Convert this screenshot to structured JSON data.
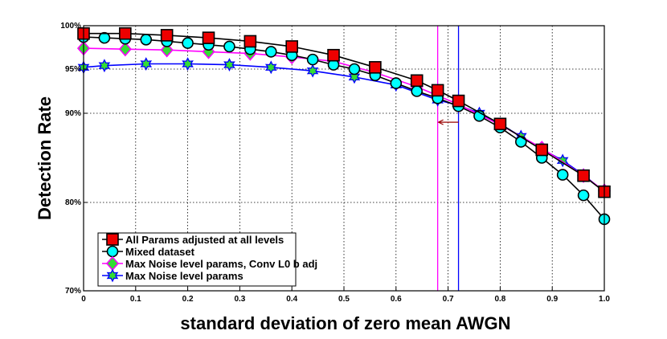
{
  "chart_data": {
    "type": "line",
    "title": "",
    "xlabel": "standard deviation of zero mean AWGN",
    "ylabel": "Detection Rate",
    "xlim": [
      0,
      1
    ],
    "ylim": [
      70,
      100
    ],
    "y_scale_note": "nonlinear axis: ticks at 70%, 80%, 90%, 95%, 100%",
    "x_ticks": [
      0,
      0.1,
      0.2,
      0.3,
      0.4,
      0.5,
      0.6,
      0.7,
      0.8,
      0.9,
      1.0
    ],
    "x_tick_labels": [
      "0",
      "0.1",
      "0.2",
      "0.3",
      "0.4",
      "0.5",
      "0.6",
      "0.7",
      "0.8",
      "0.9",
      "1.0"
    ],
    "y_ticks": [
      70,
      80,
      90,
      95,
      100
    ],
    "y_tick_labels": [
      "70%",
      "80%",
      "90%",
      "95%",
      "100%"
    ],
    "legend_position": "bottom-left",
    "series": [
      {
        "name": "All Params adjusted at all levels",
        "marker": "square",
        "marker_color": "#ee0000",
        "line_color": "#000000",
        "x": [
          0,
          0.08,
          0.16,
          0.24,
          0.32,
          0.4,
          0.48,
          0.56,
          0.64,
          0.68,
          0.72,
          0.8,
          0.88,
          0.96,
          1.0
        ],
        "y": [
          99.1,
          99.1,
          98.9,
          98.6,
          98.2,
          97.6,
          96.6,
          95.2,
          93.7,
          92.6,
          91.4,
          88.8,
          85.9,
          83.0,
          81.2
        ]
      },
      {
        "name": "Mixed dataset",
        "marker": "circle",
        "marker_color": "#00ffff",
        "line_color": "#000000",
        "x": [
          0,
          0.04,
          0.08,
          0.12,
          0.16,
          0.2,
          0.24,
          0.28,
          0.32,
          0.36,
          0.4,
          0.44,
          0.48,
          0.52,
          0.56,
          0.6,
          0.64,
          0.68,
          0.72,
          0.76,
          0.8,
          0.84,
          0.88,
          0.92,
          0.96,
          1.0
        ],
        "y": [
          98.7,
          98.6,
          98.5,
          98.4,
          98.2,
          98.0,
          97.8,
          97.6,
          97.3,
          97.0,
          96.6,
          96.1,
          95.5,
          95.0,
          94.3,
          93.4,
          92.5,
          91.7,
          90.8,
          89.7,
          88.4,
          86.8,
          85.0,
          83.1,
          80.8,
          78.1
        ]
      },
      {
        "name": "Max Noise level params, Conv L0 b adj",
        "marker": "diamond",
        "marker_color": "#33dd33",
        "marker_edge": "#ff00ff",
        "line_color": "#ff00ff",
        "x": [
          0,
          0.08,
          0.16,
          0.24,
          0.32,
          0.4,
          0.48,
          0.56,
          0.64,
          0.68,
          0.72,
          0.8,
          0.88,
          0.96,
          1.0
        ],
        "y": [
          97.4,
          97.3,
          97.2,
          97.0,
          96.8,
          96.4,
          95.9,
          94.6,
          93.0,
          92.0,
          91.0,
          88.7,
          86.1,
          83.0,
          81.3
        ]
      },
      {
        "name": "Max Noise level params",
        "marker": "hexagram",
        "marker_color": "#33dd33",
        "marker_edge": "#0000ff",
        "line_color": "#0000ff",
        "x": [
          0,
          0.04,
          0.12,
          0.2,
          0.28,
          0.36,
          0.44,
          0.52,
          0.6,
          0.68,
          0.72,
          0.76,
          0.8,
          0.84,
          0.88,
          0.92,
          0.96,
          1.0
        ],
        "y": [
          95.2,
          95.4,
          95.6,
          95.6,
          95.5,
          95.2,
          94.8,
          94.1,
          93.2,
          91.5,
          90.9,
          90.0,
          88.8,
          87.4,
          86.0,
          84.7,
          83.1,
          81.2
        ]
      }
    ],
    "annotations": [
      {
        "type": "vertical_line",
        "x": 0.68,
        "color": "#ff00ff"
      },
      {
        "type": "vertical_line",
        "x": 0.72,
        "color": "#0000ff"
      },
      {
        "type": "arrow",
        "direction": "left",
        "from_x": 0.72,
        "to_x": 0.68,
        "y": 89.0,
        "color": "#990000"
      }
    ]
  }
}
